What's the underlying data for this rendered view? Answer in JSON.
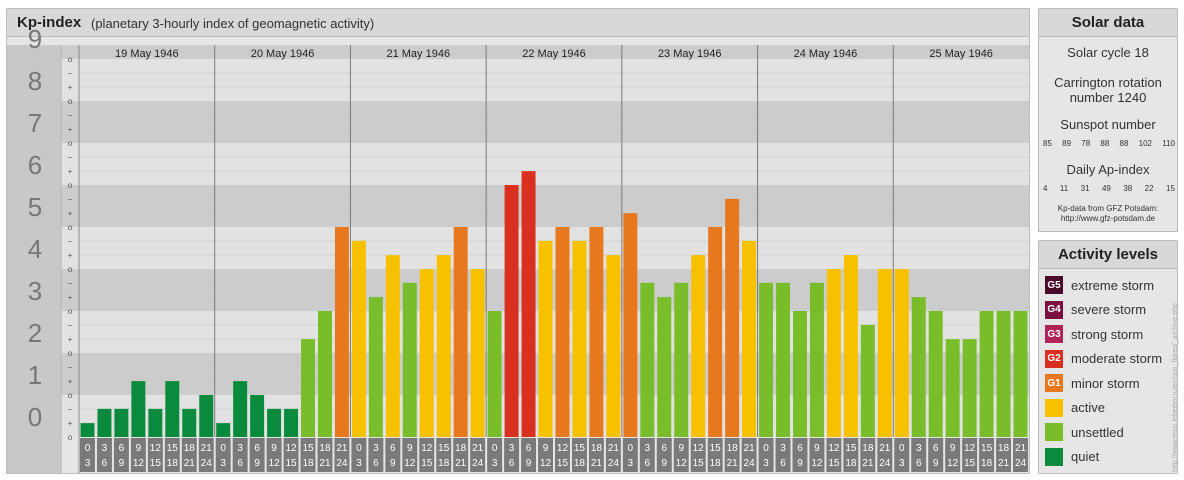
{
  "header": {
    "title": "Kp-index",
    "subtitle": "(planetary 3-hourly index of geomagnetic activity)"
  },
  "chart_data": {
    "type": "bar",
    "title": "Kp-index",
    "subtitle": "(planetary 3-hourly index of geomagnetic activity)",
    "days": [
      "19 May 1946",
      "20 May 1946",
      "21 May 1946",
      "22 May 1946",
      "23 May 1946",
      "24 May 1946",
      "25 May 1946"
    ],
    "interval_starts": [
      "0",
      "3",
      "6",
      "9",
      "12",
      "15",
      "18",
      "21"
    ],
    "interval_ends": [
      "3",
      "6",
      "9",
      "12",
      "15",
      "18",
      "21",
      "24"
    ],
    "kp_levels": [
      "9",
      "8",
      "7",
      "6",
      "5",
      "4",
      "3",
      "2",
      "1",
      "0"
    ],
    "thirds": [
      "o",
      "−",
      "+"
    ],
    "ylim": [
      0,
      9.33
    ],
    "values": [
      0.33,
      0.67,
      0.67,
      1.33,
      0.67,
      1.33,
      0.67,
      1.0,
      0.33,
      1.33,
      1.0,
      0.67,
      0.67,
      2.33,
      3.0,
      5.0,
      4.67,
      3.33,
      4.33,
      3.67,
      4.0,
      4.33,
      5.0,
      4.0,
      3.0,
      6.0,
      6.33,
      4.67,
      5.0,
      4.67,
      5.0,
      4.33,
      5.33,
      3.67,
      3.33,
      3.67,
      4.33,
      5.0,
      5.67,
      4.67,
      3.67,
      3.67,
      3.0,
      3.67,
      4.0,
      4.33,
      2.67,
      4.0,
      4.0,
      3.33,
      3.0,
      2.33,
      2.33,
      3.0,
      3.0,
      3.0
    ],
    "colors": {
      "quiet": "#0a8a3c",
      "unsettled": "#79bd2a",
      "active": "#f7c100",
      "minor": "#e8781e",
      "moderate": "#d93020",
      "band_dark": "#cccccc",
      "band_light": "#e2e2e2",
      "ticks_bg": "#7a7a7a"
    }
  },
  "solar": {
    "title": "Solar data",
    "cycle": "Solar cycle 18",
    "carrington_line1": "Carrington rotation",
    "carrington_line2": "number 1240",
    "sunspot_title": "Sunspot number",
    "sunspot_values": [
      "85",
      "89",
      "78",
      "88",
      "88",
      "102",
      "110"
    ],
    "ap_title": "Daily Ap-index",
    "ap_values": [
      "4",
      "11",
      "31",
      "49",
      "38",
      "22",
      "15"
    ],
    "source_line1": "Kp-data from GFZ Potsdam:",
    "source_line2": "http://www.gfz-potsdam.de"
  },
  "activity": {
    "title": "Activity levels",
    "levels": [
      {
        "badge": "G5",
        "label": "extreme storm",
        "color": "#4a0a2a"
      },
      {
        "badge": "G4",
        "label": "severe storm",
        "color": "#7a1040"
      },
      {
        "badge": "G3",
        "label": "strong storm",
        "color": "#b0245a"
      },
      {
        "badge": "G2",
        "label": "moderate storm",
        "color": "#d93020"
      },
      {
        "badge": "G1",
        "label": "minor storm",
        "color": "#e8781e"
      },
      {
        "badge": "",
        "label": "active",
        "color": "#f7c100"
      },
      {
        "badge": "",
        "label": "unsettled",
        "color": "#79bd2a"
      },
      {
        "badge": "",
        "label": "quiet",
        "color": "#0a8a3c"
      }
    ]
  },
  "watermark": "http://www.tesis.lebedev.ru/en/sun_flares/_archive.php"
}
